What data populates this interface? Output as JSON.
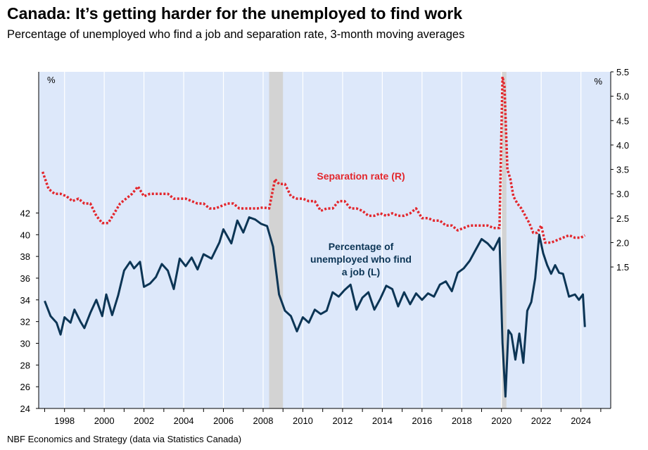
{
  "header": {
    "title": "Canada: It’s getting harder for the unemployed to find work",
    "subtitle": "Percentage of unemployed who find a job and separation rate, 3-month moving averages"
  },
  "footer": {
    "source": "NBF Economics and Strategy (data via Statistics Canada)"
  },
  "colors": {
    "job_series": "#0c3555",
    "separation_series": "#e3262c",
    "plot_bg": "#dde8fa",
    "recession": "#d3d3d3",
    "grid": "#ffffff"
  },
  "chart_data": {
    "type": "line",
    "title": "Canada: It’s getting harder for the unemployed to find work",
    "subtitle": "Percentage of unemployed who find a job and separation rate, 3-month moving averages",
    "x_range": [
      1996.7,
      2025.5
    ],
    "x_ticks": [
      "1998",
      "2000",
      "2002",
      "2004",
      "2006",
      "2008",
      "2010",
      "2012",
      "2014",
      "2016",
      "2018",
      "2020",
      "2022",
      "2024"
    ],
    "left_axis": {
      "unit": "%",
      "range": [
        24,
        42
      ],
      "ticks": [
        "24",
        "26",
        "28",
        "30",
        "32",
        "34",
        "36",
        "38",
        "40",
        "42"
      ],
      "plot_top_value": 55
    },
    "right_axis": {
      "unit": "%",
      "range": [
        1.5,
        5.5
      ],
      "ticks": [
        "1.5",
        "2.0",
        "2.5",
        "3.0",
        "3.5",
        "4.0",
        "4.5",
        "5.0",
        "5.5"
      ],
      "plot_bottom_value": -1.4
    },
    "gridlines": "vertical",
    "shaded_periods": [
      [
        2008.3,
        2009.0
      ],
      [
        2020.0,
        2020.25
      ]
    ],
    "series": [
      {
        "name": "Percentage of unemployed who find a job (L)",
        "label": "Percentage of\nunemployed who find\na job (L)",
        "axis": "left",
        "style": "solid",
        "x": [
          1997.0,
          1997.3,
          1997.6,
          1997.8,
          1998.0,
          1998.3,
          1998.5,
          1998.8,
          1999.0,
          1999.3,
          1999.6,
          1999.9,
          2000.1,
          2000.4,
          2000.7,
          2001.0,
          2001.3,
          2001.5,
          2001.8,
          2002.0,
          2002.3,
          2002.6,
          2002.9,
          2003.2,
          2003.5,
          2003.8,
          2004.1,
          2004.4,
          2004.7,
          2005.0,
          2005.4,
          2005.8,
          2006.0,
          2006.4,
          2006.7,
          2007.0,
          2007.3,
          2007.6,
          2007.9,
          2008.2,
          2008.5,
          2008.8,
          2009.1,
          2009.4,
          2009.7,
          2010.0,
          2010.3,
          2010.6,
          2010.9,
          2011.2,
          2011.5,
          2011.8,
          2012.1,
          2012.4,
          2012.7,
          2013.0,
          2013.3,
          2013.6,
          2013.9,
          2014.2,
          2014.5,
          2014.8,
          2015.1,
          2015.4,
          2015.7,
          2016.0,
          2016.3,
          2016.6,
          2016.9,
          2017.2,
          2017.5,
          2017.8,
          2018.1,
          2018.4,
          2018.7,
          2019.0,
          2019.3,
          2019.6,
          2019.9,
          2020.05,
          2020.2,
          2020.35,
          2020.5,
          2020.7,
          2020.9,
          2021.1,
          2021.3,
          2021.5,
          2021.7,
          2021.9,
          2022.1,
          2022.3,
          2022.5,
          2022.7,
          2022.9,
          2023.1,
          2023.4,
          2023.7,
          2023.9,
          2024.1,
          2024.2
        ],
        "values": [
          33.9,
          32.5,
          31.9,
          30.8,
          32.4,
          31.9,
          33.1,
          32.0,
          31.4,
          32.8,
          34.0,
          32.5,
          34.5,
          32.6,
          34.4,
          36.7,
          37.5,
          36.9,
          37.5,
          35.2,
          35.5,
          36.1,
          37.3,
          36.7,
          35.0,
          37.8,
          37.1,
          37.9,
          36.8,
          38.2,
          37.8,
          39.3,
          40.5,
          39.2,
          41.3,
          40.2,
          41.6,
          41.4,
          41.0,
          40.8,
          38.9,
          34.5,
          33.0,
          32.5,
          31.1,
          32.4,
          31.9,
          33.1,
          32.7,
          33.0,
          34.7,
          34.3,
          34.9,
          35.4,
          33.1,
          34.2,
          34.7,
          33.1,
          34.1,
          35.3,
          35.0,
          33.4,
          34.7,
          33.6,
          34.6,
          34.0,
          34.6,
          34.3,
          35.4,
          35.7,
          34.8,
          36.5,
          36.9,
          37.6,
          38.6,
          39.6,
          39.2,
          38.6,
          39.7,
          30.0,
          25.1,
          31.2,
          30.8,
          28.5,
          30.9,
          28.2,
          33.0,
          33.8,
          36.0,
          40.0,
          38.3,
          37.2,
          36.4,
          37.2,
          36.5,
          36.4,
          34.3,
          34.5,
          34.0,
          34.5,
          31.5
        ]
      },
      {
        "name": "Separation rate (R)",
        "label": "Separation rate (R)",
        "axis": "right",
        "style": "dotted",
        "x": [
          1996.9,
          1997.2,
          1997.5,
          1997.8,
          1998.1,
          1998.4,
          1998.7,
          1999.0,
          1999.3,
          1999.6,
          1999.9,
          2000.2,
          2000.5,
          2000.8,
          2001.1,
          2001.4,
          2001.7,
          2002.0,
          2002.3,
          2002.6,
          2002.9,
          2003.2,
          2003.5,
          2003.8,
          2004.1,
          2004.4,
          2004.7,
          2005.0,
          2005.3,
          2005.6,
          2005.9,
          2006.2,
          2006.5,
          2006.8,
          2007.1,
          2007.4,
          2007.7,
          2008.0,
          2008.3,
          2008.6,
          2008.8,
          2009.1,
          2009.4,
          2009.7,
          2010.0,
          2010.3,
          2010.6,
          2010.9,
          2011.2,
          2011.5,
          2011.8,
          2012.1,
          2012.4,
          2012.7,
          2013.0,
          2013.3,
          2013.6,
          2013.9,
          2014.2,
          2014.5,
          2014.8,
          2015.1,
          2015.4,
          2015.7,
          2016.0,
          2016.3,
          2016.6,
          2016.9,
          2017.2,
          2017.5,
          2017.8,
          2018.1,
          2018.4,
          2018.7,
          2019.0,
          2019.3,
          2019.6,
          2019.9,
          2020.05,
          2020.15,
          2020.3,
          2020.45,
          2020.6,
          2020.8,
          2021.0,
          2021.2,
          2021.4,
          2021.6,
          2021.8,
          2022.0,
          2022.2,
          2022.5,
          2022.8,
          2023.1,
          2023.4,
          2023.7,
          2024.0,
          2024.2
        ],
        "values": [
          3.45,
          3.1,
          3.0,
          3.0,
          2.95,
          2.85,
          2.9,
          2.8,
          2.8,
          2.55,
          2.4,
          2.4,
          2.6,
          2.8,
          2.9,
          3.0,
          3.15,
          2.95,
          3.0,
          3.0,
          3.0,
          3.0,
          2.9,
          2.9,
          2.9,
          2.85,
          2.8,
          2.8,
          2.7,
          2.7,
          2.75,
          2.8,
          2.8,
          2.7,
          2.7,
          2.7,
          2.7,
          2.72,
          2.7,
          3.3,
          3.2,
          3.2,
          2.95,
          2.9,
          2.9,
          2.85,
          2.85,
          2.65,
          2.7,
          2.7,
          2.85,
          2.85,
          2.7,
          2.7,
          2.65,
          2.55,
          2.55,
          2.6,
          2.55,
          2.6,
          2.55,
          2.55,
          2.6,
          2.7,
          2.5,
          2.5,
          2.45,
          2.45,
          2.35,
          2.35,
          2.25,
          2.3,
          2.35,
          2.35,
          2.35,
          2.35,
          2.3,
          2.3,
          5.4,
          5.2,
          3.5,
          3.3,
          2.95,
          2.8,
          2.7,
          2.55,
          2.4,
          2.2,
          2.2,
          2.35,
          2.0,
          2.0,
          2.05,
          2.1,
          2.15,
          2.1,
          2.1,
          2.15
        ]
      }
    ]
  }
}
